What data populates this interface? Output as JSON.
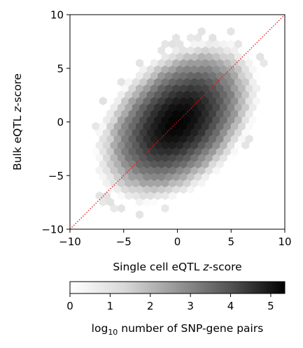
{
  "chart_data": {
    "type": "heatmap",
    "subtype": "hexbin",
    "xlabel": "Single cell eQTL z-score",
    "ylabel": "Bulk eQTL z-score",
    "xlim": [
      -10,
      10
    ],
    "ylim": [
      -10,
      10
    ],
    "xticks": [
      -10,
      -5,
      0,
      5,
      10
    ],
    "yticks": [
      -10,
      -5,
      0,
      5,
      10
    ],
    "xtick_labels": [
      "−10",
      "−5",
      "0",
      "5",
      "10"
    ],
    "ytick_labels": [
      "−10",
      "−5",
      "0",
      "5",
      "10"
    ],
    "reference_line": {
      "style": "dotted",
      "color": "#e8171c",
      "slope": 1,
      "intercept": 0
    },
    "density": {
      "center": [
        0,
        0
      ],
      "peak_log10_count": 5.3,
      "sigma_along_diagonal": 4.4,
      "sigma_across_diagonal": 2.9
    },
    "colorbar": {
      "label": "log10 number of SNP-gene pairs",
      "range": [
        0,
        5.35
      ],
      "ticks": [
        0,
        1,
        2,
        3,
        4,
        5
      ],
      "tick_labels": [
        "0",
        "1",
        "2",
        "3",
        "4",
        "5"
      ],
      "colormap": "Greys",
      "orientation": "horizontal",
      "position": "bottom"
    },
    "grid": false,
    "legend": "none"
  },
  "colors": {
    "low": "#ffffff",
    "high": "#000000",
    "line": "#e8171c"
  }
}
